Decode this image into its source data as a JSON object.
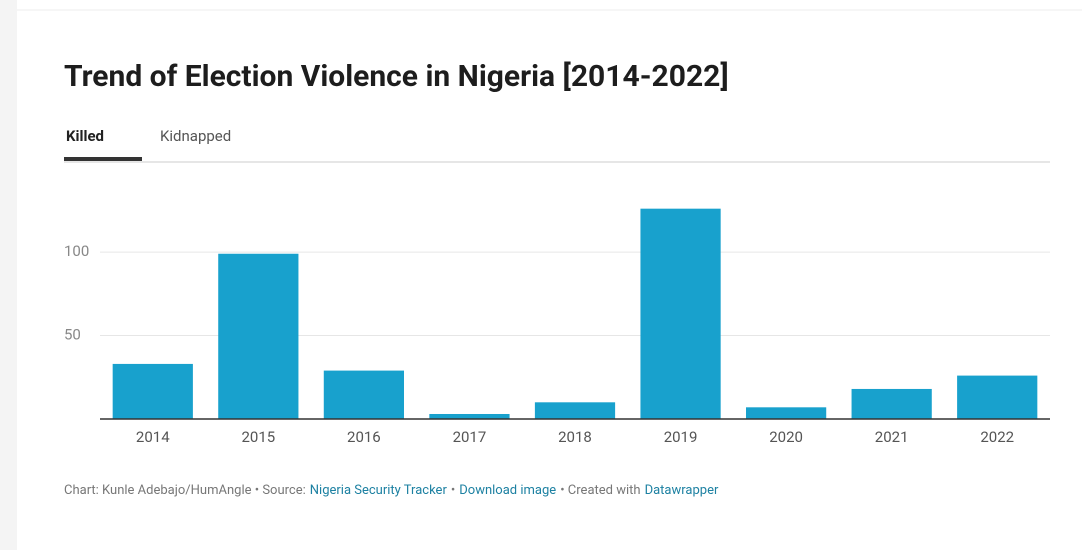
{
  "chart_data": {
    "type": "bar",
    "title": "Trend of Election Violence in Nigeria [2014-2022]",
    "tabs": [
      "Killed",
      "Kidnapped"
    ],
    "categories": [
      "2014",
      "2015",
      "2016",
      "2017",
      "2018",
      "2019",
      "2020",
      "2021",
      "2022"
    ],
    "values": [
      33,
      99,
      29,
      3,
      10,
      126,
      7,
      18,
      26
    ],
    "color": "#18a1cd",
    "ylim": [
      0,
      130
    ],
    "yticks": [
      50,
      100
    ],
    "grid": true,
    "footer": [
      {
        "text": "Chart: Kunle Adebajo/HumAngle • Source:",
        "link": false
      },
      {
        "text": "Nigeria Security Tracker",
        "link": true
      },
      {
        "text": "•",
        "link": false
      },
      {
        "text": "Download image",
        "link": true
      },
      {
        "text": "• Created with",
        "link": false
      },
      {
        "text": "Datawrapper",
        "link": true
      }
    ]
  }
}
